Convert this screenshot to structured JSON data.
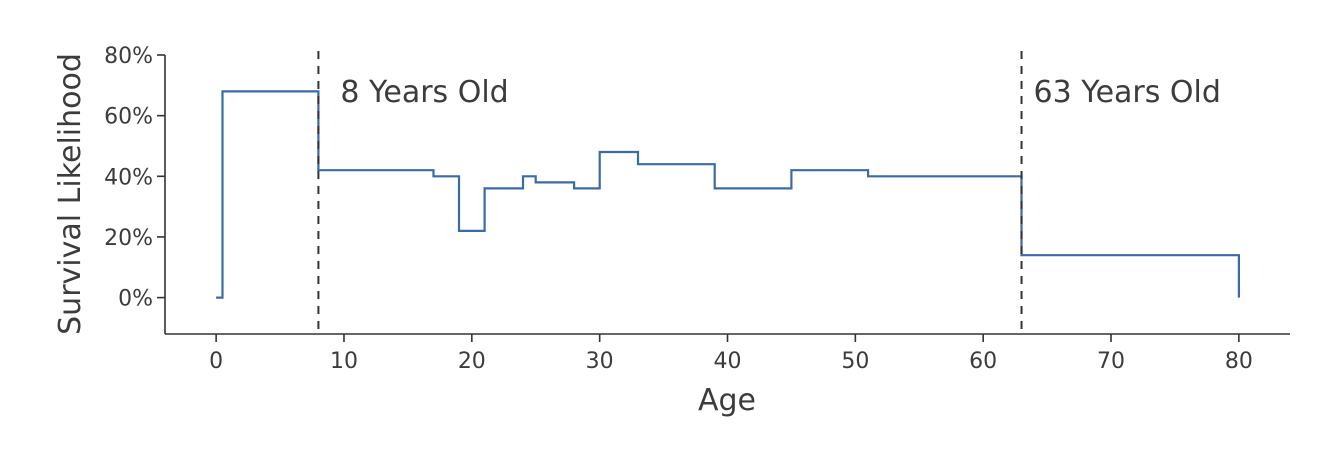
{
  "chart_data": {
    "type": "line",
    "title": "",
    "xlabel": "Age",
    "ylabel": "Survival Likelihood",
    "xlim": [
      -4,
      84
    ],
    "ylim": [
      -12,
      80
    ],
    "x_ticks": [
      0,
      10,
      20,
      30,
      40,
      50,
      60,
      70,
      80
    ],
    "x_tick_labels": [
      "0",
      "10",
      "20",
      "30",
      "40",
      "50",
      "60",
      "70",
      "80"
    ],
    "y_ticks": [
      0,
      20,
      40,
      60,
      80
    ],
    "y_tick_labels": [
      "0%",
      "20%",
      "40%",
      "60%",
      "80%"
    ],
    "grid": false,
    "line_style": "step",
    "series": [
      {
        "color": "#3b6aa8",
        "points": [
          [
            0,
            0
          ],
          [
            0.5,
            0
          ],
          [
            0.5,
            68
          ],
          [
            8,
            68
          ],
          [
            8,
            42
          ],
          [
            17,
            42
          ],
          [
            17,
            40
          ],
          [
            19,
            40
          ],
          [
            19,
            22
          ],
          [
            21,
            22
          ],
          [
            21,
            36
          ],
          [
            24,
            36
          ],
          [
            24,
            40
          ],
          [
            25,
            40
          ],
          [
            25,
            38
          ],
          [
            28,
            38
          ],
          [
            28,
            36
          ],
          [
            30,
            36
          ],
          [
            30,
            48
          ],
          [
            33,
            48
          ],
          [
            33,
            44
          ],
          [
            39,
            44
          ],
          [
            39,
            36
          ],
          [
            45,
            36
          ],
          [
            45,
            42
          ],
          [
            51,
            42
          ],
          [
            51,
            40
          ],
          [
            63,
            40
          ],
          [
            63,
            14
          ],
          [
            80,
            14
          ],
          [
            80,
            0
          ]
        ]
      }
    ],
    "annotations": [
      {
        "x": 8,
        "label": "8 Years Old"
      },
      {
        "x": 63,
        "label": "63 Years Old"
      }
    ]
  }
}
